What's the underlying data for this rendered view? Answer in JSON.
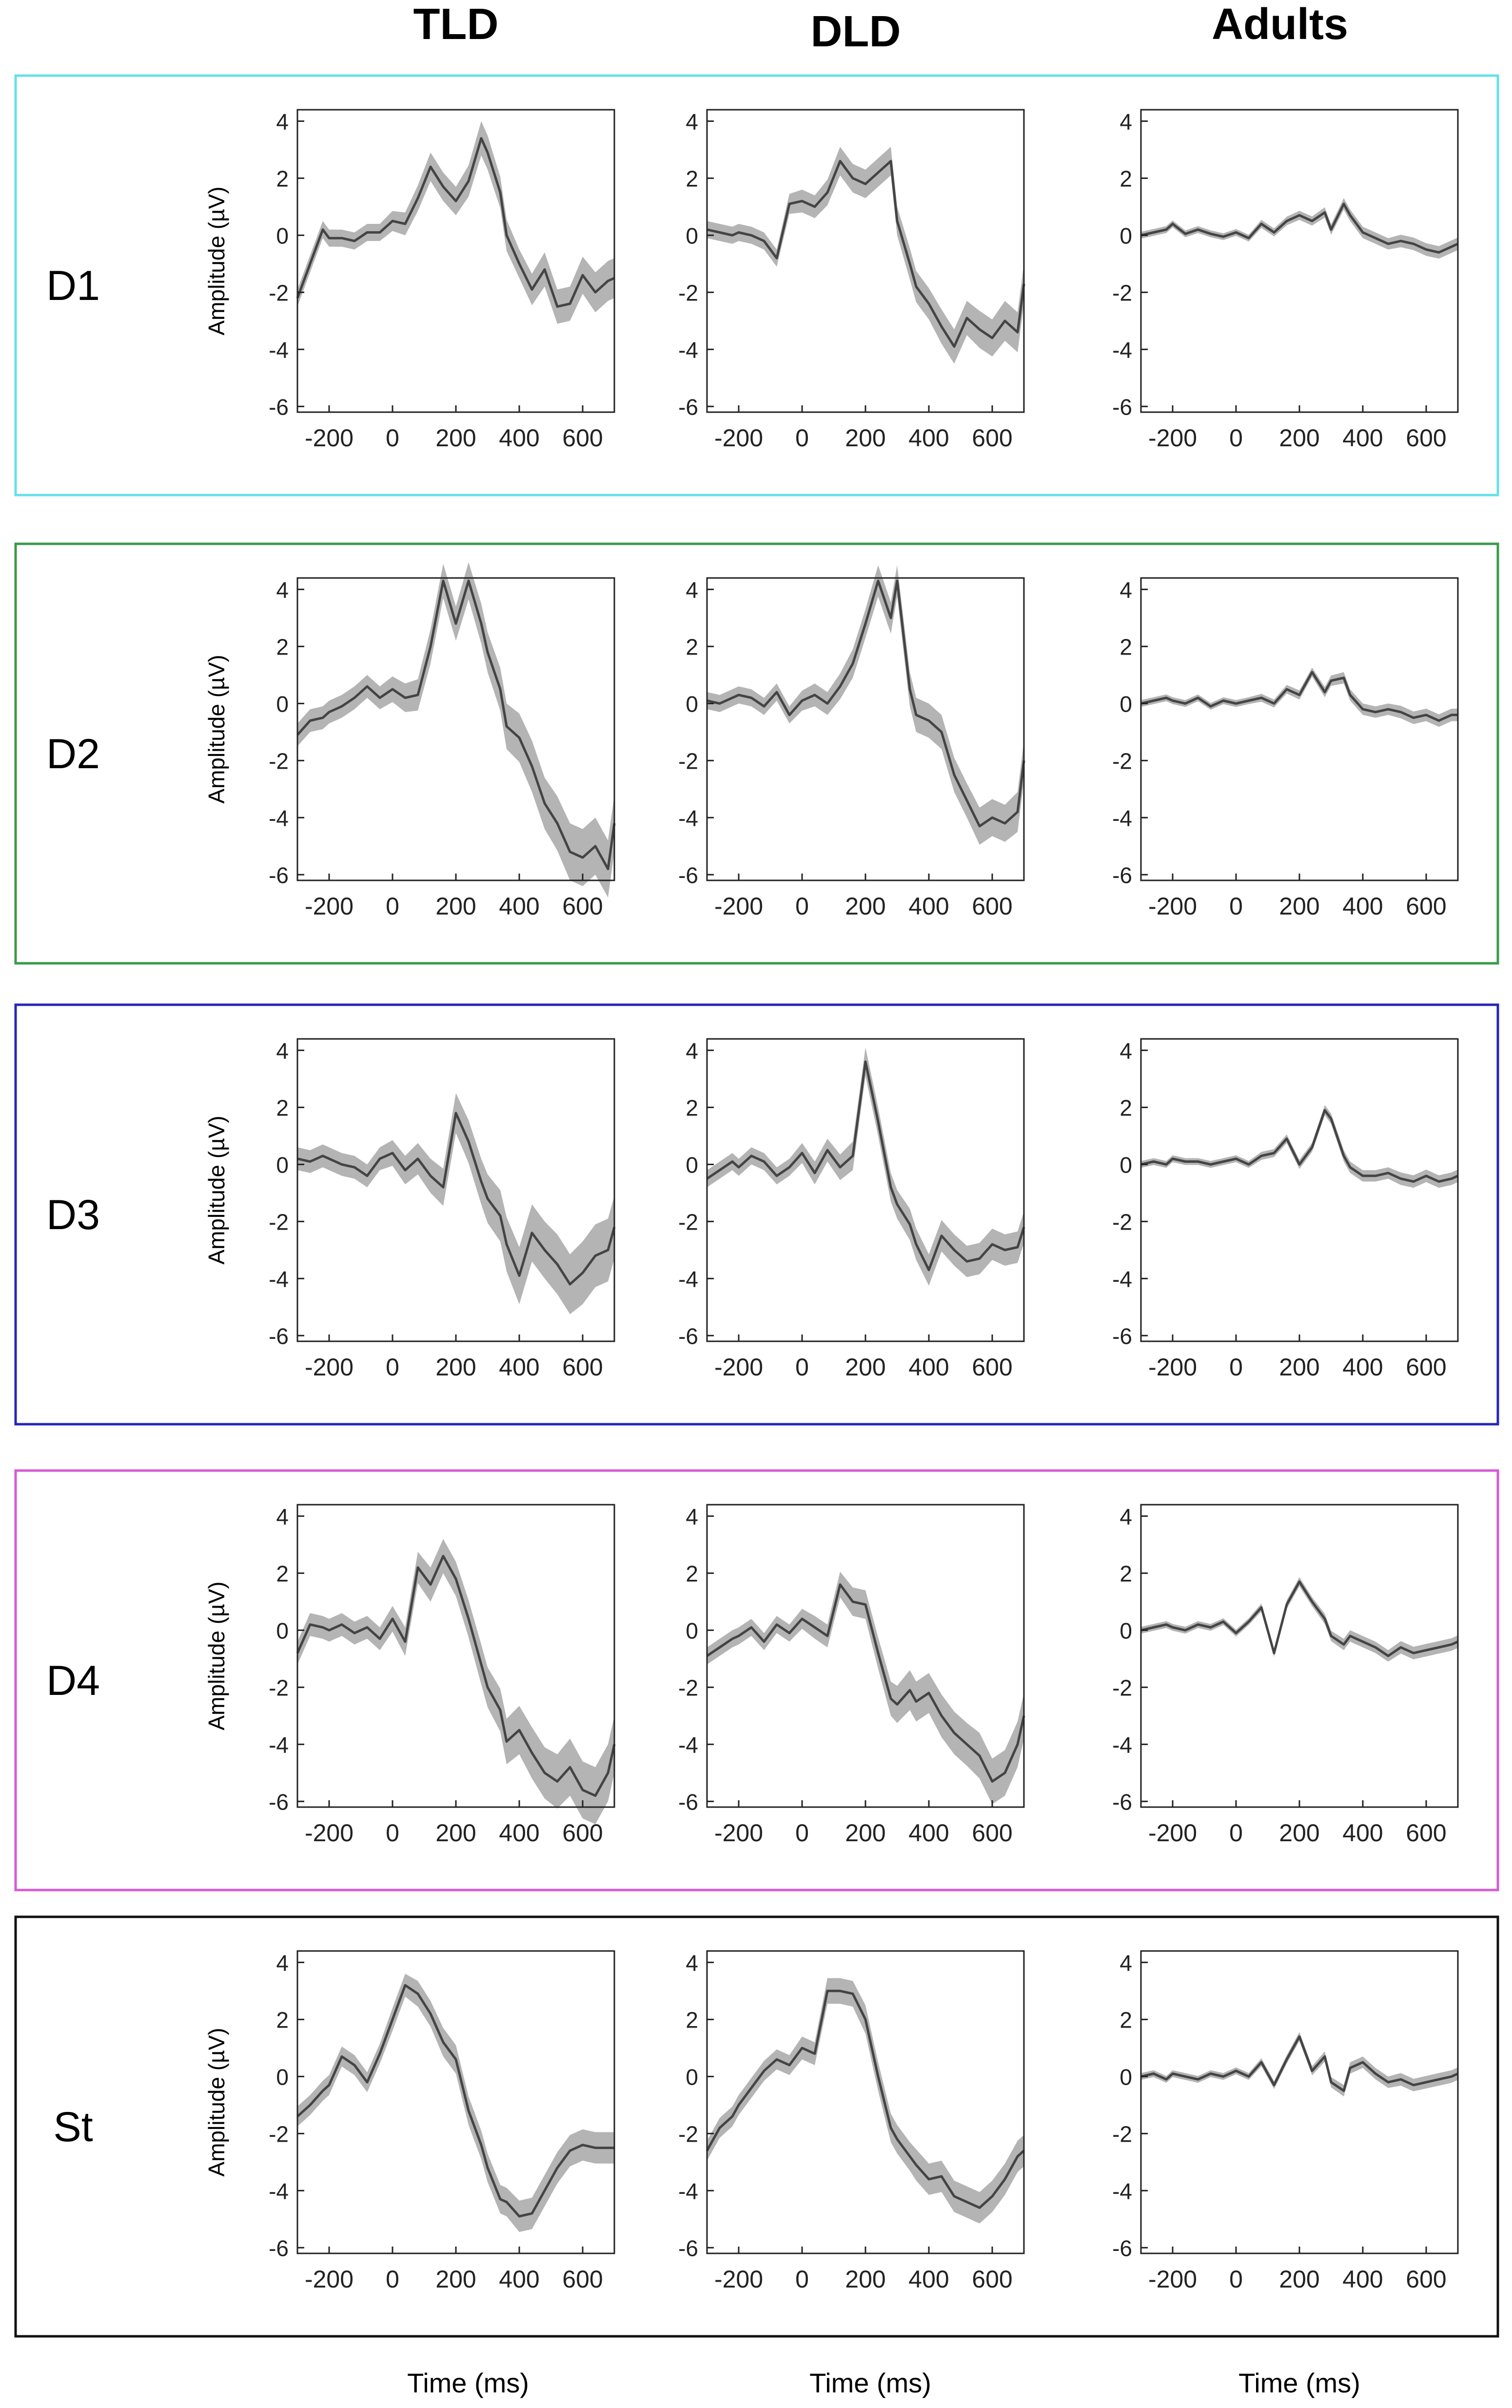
{
  "column_headers": [
    "TLD",
    "DLD",
    "Adults"
  ],
  "row_labels": [
    "D1",
    "D2",
    "D3",
    "D4",
    "St"
  ],
  "row_border_colors": [
    "#66e0ea",
    "#3a9a4a",
    "#2626b8",
    "#d65ad6",
    "#111111"
  ],
  "ylabel": "Amplitude (µV)",
  "xlabel": "Time (ms)",
  "axis": {
    "xlim": [
      -300,
      700
    ],
    "ylim": [
      -6.2,
      4.4
    ],
    "xticks": [
      -200,
      0,
      200,
      400,
      600
    ],
    "yticks": [
      4,
      2,
      0,
      -2,
      -4,
      -6
    ],
    "grid": false
  },
  "colors": {
    "mean_line": "#444444",
    "ci_band": "#b4b4b4",
    "axis": "#222222"
  },
  "chart_data": [
    {
      "type": "line",
      "panel": "D1-TLD",
      "x": [
        -300,
        -260,
        -220,
        -200,
        -160,
        -120,
        -80,
        -40,
        0,
        40,
        80,
        120,
        160,
        200,
        240,
        280,
        300,
        340,
        360,
        400,
        440,
        480,
        520,
        560,
        600,
        640,
        680,
        700
      ],
      "y": [
        -2.2,
        -1.0,
        0.2,
        -0.1,
        -0.1,
        -0.2,
        0.1,
        0.1,
        0.5,
        0.4,
        1.3,
        2.4,
        1.7,
        1.2,
        1.9,
        3.4,
        2.9,
        1.5,
        0,
        -1.0,
        -1.9,
        -1.2,
        -2.5,
        -2.4,
        -1.4,
        -2.0,
        -1.6,
        -1.5
      ],
      "ci": [
        0.3,
        0.3,
        0.3,
        0.3,
        0.3,
        0.3,
        0.3,
        0.3,
        0.35,
        0.4,
        0.45,
        0.5,
        0.5,
        0.5,
        0.55,
        0.6,
        0.6,
        0.55,
        0.55,
        0.5,
        0.55,
        0.6,
        0.6,
        0.6,
        0.65,
        0.7,
        0.7,
        0.7
      ]
    },
    {
      "type": "line",
      "panel": "D1-DLD",
      "x": [
        -300,
        -260,
        -220,
        -200,
        -160,
        -120,
        -80,
        -40,
        0,
        40,
        80,
        120,
        160,
        200,
        240,
        280,
        300,
        340,
        360,
        400,
        440,
        480,
        520,
        560,
        600,
        640,
        680,
        700
      ],
      "y": [
        0.2,
        0.1,
        0.0,
        0.1,
        0,
        -0.2,
        -0.8,
        1.1,
        1.2,
        1.0,
        1.5,
        2.6,
        2.0,
        1.8,
        2.2,
        2.6,
        0.5,
        -1.0,
        -1.8,
        -2.4,
        -3.2,
        -3.9,
        -2.9,
        -3.3,
        -3.6,
        -3.0,
        -3.4,
        -1.7
      ],
      "ci": [
        0.3,
        0.3,
        0.3,
        0.3,
        0.3,
        0.3,
        0.3,
        0.35,
        0.4,
        0.4,
        0.45,
        0.5,
        0.5,
        0.5,
        0.5,
        0.5,
        0.5,
        0.55,
        0.55,
        0.55,
        0.6,
        0.6,
        0.6,
        0.65,
        0.65,
        0.7,
        0.7,
        0.7
      ]
    },
    {
      "type": "line",
      "panel": "D1-Adults",
      "x": [
        -300,
        -260,
        -220,
        -200,
        -160,
        -120,
        -80,
        -40,
        0,
        40,
        80,
        120,
        160,
        200,
        240,
        280,
        300,
        340,
        360,
        400,
        440,
        480,
        520,
        560,
        600,
        640,
        680,
        700
      ],
      "y": [
        0,
        0.1,
        0.2,
        0.4,
        0.05,
        0.2,
        0.05,
        -0.05,
        0.1,
        -0.1,
        0.4,
        0.1,
        0.5,
        0.7,
        0.5,
        0.8,
        0.2,
        1.1,
        0.7,
        0.1,
        -0.1,
        -0.3,
        -0.2,
        -0.3,
        -0.5,
        -0.6,
        -0.4,
        -0.3
      ],
      "ci": [
        0.12,
        0.12,
        0.12,
        0.12,
        0.12,
        0.12,
        0.12,
        0.12,
        0.12,
        0.12,
        0.14,
        0.14,
        0.15,
        0.16,
        0.16,
        0.18,
        0.18,
        0.2,
        0.2,
        0.2,
        0.2,
        0.2,
        0.22,
        0.22,
        0.22,
        0.22,
        0.22,
        0.22
      ]
    },
    {
      "type": "line",
      "panel": "D2-TLD",
      "x": [
        -300,
        -260,
        -220,
        -200,
        -160,
        -120,
        -80,
        -40,
        0,
        40,
        80,
        120,
        160,
        200,
        240,
        280,
        300,
        340,
        360,
        400,
        440,
        480,
        520,
        560,
        600,
        640,
        680,
        700
      ],
      "y": [
        -1.1,
        -0.6,
        -0.5,
        -0.3,
        -0.1,
        0.2,
        0.6,
        0.2,
        0.5,
        0.2,
        0.3,
        2.0,
        4.3,
        2.8,
        4.3,
        2.8,
        1.8,
        0.5,
        -0.8,
        -1.2,
        -2.2,
        -3.5,
        -4.2,
        -5.2,
        -5.4,
        -5.0,
        -5.8,
        -4.2
      ],
      "ci": [
        0.4,
        0.4,
        0.4,
        0.4,
        0.4,
        0.4,
        0.4,
        0.4,
        0.45,
        0.5,
        0.55,
        0.6,
        0.6,
        0.6,
        0.65,
        0.7,
        0.7,
        0.75,
        0.8,
        0.85,
        0.9,
        0.9,
        0.95,
        1.0,
        1.0,
        1.0,
        1.0,
        1.0
      ]
    },
    {
      "type": "line",
      "panel": "D2-DLD",
      "x": [
        -300,
        -260,
        -220,
        -200,
        -160,
        -120,
        -80,
        -40,
        0,
        40,
        80,
        120,
        160,
        200,
        240,
        280,
        300,
        340,
        360,
        400,
        440,
        480,
        520,
        560,
        600,
        640,
        680,
        700
      ],
      "y": [
        0.1,
        0.0,
        0.2,
        0.3,
        0.2,
        -0.1,
        0.4,
        -0.4,
        0.1,
        0.3,
        0.0,
        0.6,
        1.4,
        2.8,
        4.3,
        3.0,
        4.3,
        0.5,
        -0.4,
        -0.6,
        -1.0,
        -2.5,
        -3.4,
        -4.3,
        -4.0,
        -4.2,
        -3.8,
        -2.0
      ],
      "ci": [
        0.3,
        0.3,
        0.3,
        0.3,
        0.3,
        0.3,
        0.3,
        0.3,
        0.35,
        0.4,
        0.4,
        0.45,
        0.5,
        0.5,
        0.55,
        0.55,
        0.55,
        0.6,
        0.6,
        0.6,
        0.6,
        0.6,
        0.6,
        0.65,
        0.65,
        0.65,
        0.7,
        0.7
      ]
    },
    {
      "type": "line",
      "panel": "D2-Adults",
      "x": [
        -300,
        -260,
        -220,
        -200,
        -160,
        -120,
        -80,
        -40,
        0,
        40,
        80,
        120,
        160,
        200,
        240,
        280,
        300,
        340,
        360,
        400,
        440,
        480,
        520,
        560,
        600,
        640,
        680,
        700
      ],
      "y": [
        0,
        0.1,
        0.2,
        0.1,
        0.0,
        0.2,
        -0.1,
        0.1,
        0.0,
        0.1,
        0.2,
        0.0,
        0.5,
        0.3,
        1.1,
        0.4,
        0.8,
        0.9,
        0.3,
        -0.2,
        -0.3,
        -0.2,
        -0.3,
        -0.5,
        -0.4,
        -0.6,
        -0.4,
        -0.4
      ],
      "ci": [
        0.12,
        0.12,
        0.12,
        0.12,
        0.12,
        0.12,
        0.12,
        0.12,
        0.12,
        0.12,
        0.14,
        0.14,
        0.15,
        0.16,
        0.16,
        0.18,
        0.18,
        0.2,
        0.2,
        0.2,
        0.2,
        0.2,
        0.22,
        0.22,
        0.22,
        0.22,
        0.22,
        0.22
      ]
    },
    {
      "type": "line",
      "panel": "D3-TLD",
      "x": [
        -300,
        -260,
        -220,
        -200,
        -160,
        -120,
        -80,
        -40,
        0,
        40,
        80,
        120,
        160,
        200,
        240,
        280,
        300,
        340,
        360,
        400,
        440,
        480,
        520,
        560,
        600,
        640,
        680,
        700
      ],
      "y": [
        0.2,
        0.1,
        0.3,
        0.2,
        0.0,
        -0.1,
        -0.4,
        0.2,
        0.4,
        -0.2,
        0.2,
        -0.4,
        -0.8,
        1.8,
        0.8,
        -0.6,
        -1.2,
        -1.8,
        -2.8,
        -3.9,
        -2.4,
        -3.0,
        -3.5,
        -4.2,
        -3.8,
        -3.2,
        -3.0,
        -2.2
      ],
      "ci": [
        0.4,
        0.4,
        0.4,
        0.4,
        0.4,
        0.4,
        0.4,
        0.4,
        0.45,
        0.5,
        0.55,
        0.6,
        0.65,
        0.7,
        0.75,
        0.8,
        0.85,
        0.9,
        0.95,
        1.0,
        1.0,
        1.0,
        1.05,
        1.05,
        1.1,
        1.1,
        1.1,
        1.1
      ]
    },
    {
      "type": "line",
      "panel": "D3-DLD",
      "x": [
        -300,
        -260,
        -220,
        -200,
        -160,
        -120,
        -80,
        -40,
        0,
        40,
        80,
        120,
        160,
        200,
        240,
        280,
        300,
        340,
        360,
        400,
        440,
        480,
        520,
        560,
        600,
        640,
        680,
        700
      ],
      "y": [
        -0.5,
        -0.2,
        0.1,
        -0.1,
        0.3,
        0.1,
        -0.4,
        -0.1,
        0.4,
        -0.3,
        0.5,
        -0.1,
        0.3,
        3.6,
        1.5,
        -0.8,
        -1.4,
        -2.1,
        -2.8,
        -3.7,
        -2.5,
        -3.0,
        -3.4,
        -3.3,
        -2.8,
        -3.0,
        -2.9,
        -2.2
      ],
      "ci": [
        0.3,
        0.3,
        0.3,
        0.3,
        0.3,
        0.3,
        0.3,
        0.3,
        0.35,
        0.4,
        0.4,
        0.45,
        0.5,
        0.5,
        0.5,
        0.5,
        0.5,
        0.55,
        0.55,
        0.55,
        0.55,
        0.55,
        0.55,
        0.55,
        0.55,
        0.55,
        0.55,
        0.55
      ]
    },
    {
      "type": "line",
      "panel": "D3-Adults",
      "x": [
        -300,
        -260,
        -220,
        -200,
        -160,
        -120,
        -80,
        -40,
        0,
        40,
        80,
        120,
        160,
        200,
        240,
        280,
        300,
        340,
        360,
        400,
        440,
        480,
        520,
        560,
        600,
        640,
        680,
        700
      ],
      "y": [
        0,
        0.1,
        0.0,
        0.2,
        0.1,
        0.1,
        0.0,
        0.1,
        0.2,
        0.0,
        0.3,
        0.4,
        0.9,
        0.0,
        0.6,
        1.9,
        1.6,
        0.3,
        -0.1,
        -0.4,
        -0.4,
        -0.3,
        -0.5,
        -0.6,
        -0.4,
        -0.6,
        -0.5,
        -0.4
      ],
      "ci": [
        0.12,
        0.12,
        0.12,
        0.12,
        0.12,
        0.12,
        0.12,
        0.12,
        0.12,
        0.12,
        0.14,
        0.14,
        0.15,
        0.16,
        0.16,
        0.18,
        0.18,
        0.2,
        0.2,
        0.2,
        0.2,
        0.2,
        0.22,
        0.22,
        0.22,
        0.22,
        0.22,
        0.22
      ]
    },
    {
      "type": "line",
      "panel": "D4-TLD",
      "x": [
        -300,
        -260,
        -220,
        -200,
        -160,
        -120,
        -80,
        -40,
        0,
        40,
        80,
        120,
        160,
        200,
        240,
        280,
        300,
        340,
        360,
        400,
        440,
        480,
        520,
        560,
        600,
        640,
        680,
        700
      ],
      "y": [
        -0.8,
        0.2,
        0.1,
        0.0,
        0.2,
        -0.1,
        0.1,
        -0.3,
        0.4,
        -0.4,
        2.2,
        1.6,
        2.6,
        1.8,
        0.4,
        -1.2,
        -2.0,
        -2.8,
        -3.9,
        -3.5,
        -4.3,
        -5.0,
        -5.3,
        -4.8,
        -5.6,
        -5.8,
        -5.0,
        -4.0
      ],
      "ci": [
        0.4,
        0.4,
        0.4,
        0.4,
        0.4,
        0.4,
        0.4,
        0.4,
        0.45,
        0.5,
        0.55,
        0.6,
        0.6,
        0.6,
        0.65,
        0.7,
        0.7,
        0.75,
        0.8,
        0.85,
        0.9,
        0.9,
        0.95,
        1.0,
        1.0,
        1.0,
        1.0,
        1.0
      ]
    },
    {
      "type": "line",
      "panel": "D4-DLD",
      "x": [
        -300,
        -260,
        -220,
        -200,
        -160,
        -120,
        -80,
        -40,
        0,
        40,
        80,
        120,
        160,
        200,
        240,
        280,
        300,
        340,
        360,
        400,
        440,
        480,
        520,
        560,
        600,
        640,
        680,
        700
      ],
      "y": [
        -0.9,
        -0.6,
        -0.3,
        -0.2,
        0.1,
        -0.4,
        0.2,
        -0.1,
        0.4,
        0.1,
        -0.2,
        1.6,
        1.0,
        0.9,
        -0.8,
        -2.4,
        -2.6,
        -2.1,
        -2.5,
        -2.2,
        -3.0,
        -3.6,
        -4.0,
        -4.4,
        -5.3,
        -5.0,
        -4.0,
        -3.0
      ],
      "ci": [
        0.3,
        0.3,
        0.3,
        0.3,
        0.3,
        0.3,
        0.3,
        0.3,
        0.35,
        0.4,
        0.4,
        0.45,
        0.5,
        0.5,
        0.55,
        0.6,
        0.65,
        0.7,
        0.7,
        0.7,
        0.75,
        0.75,
        0.75,
        0.8,
        0.8,
        0.8,
        0.8,
        0.8
      ]
    },
    {
      "type": "line",
      "panel": "D4-Adults",
      "x": [
        -300,
        -260,
        -220,
        -200,
        -160,
        -120,
        -80,
        -40,
        0,
        40,
        80,
        120,
        160,
        200,
        240,
        280,
        300,
        340,
        360,
        400,
        440,
        480,
        520,
        560,
        600,
        640,
        680,
        700
      ],
      "y": [
        0,
        0.1,
        0.2,
        0.1,
        0.0,
        0.2,
        0.1,
        0.3,
        -0.1,
        0.3,
        0.8,
        -0.8,
        0.9,
        1.7,
        1.0,
        0.4,
        -0.2,
        -0.5,
        -0.2,
        -0.4,
        -0.6,
        -0.9,
        -0.6,
        -0.8,
        -0.7,
        -0.6,
        -0.5,
        -0.4
      ],
      "ci": [
        0.12,
        0.12,
        0.12,
        0.12,
        0.12,
        0.12,
        0.12,
        0.12,
        0.12,
        0.12,
        0.14,
        0.14,
        0.15,
        0.16,
        0.16,
        0.18,
        0.18,
        0.2,
        0.2,
        0.2,
        0.2,
        0.2,
        0.22,
        0.22,
        0.22,
        0.22,
        0.22,
        0.22
      ]
    },
    {
      "type": "line",
      "panel": "St-TLD",
      "x": [
        -300,
        -260,
        -220,
        -200,
        -160,
        -120,
        -80,
        -40,
        0,
        40,
        80,
        120,
        160,
        200,
        240,
        280,
        300,
        340,
        360,
        400,
        440,
        480,
        520,
        560,
        600,
        640,
        680,
        700
      ],
      "y": [
        -1.4,
        -1.0,
        -0.5,
        -0.3,
        0.7,
        0.4,
        -0.2,
        0.8,
        2.0,
        3.2,
        2.9,
        2.2,
        1.2,
        0.6,
        -1.2,
        -2.4,
        -3.2,
        -4.3,
        -4.4,
        -4.9,
        -4.8,
        -4.0,
        -3.2,
        -2.6,
        -2.4,
        -2.5,
        -2.5,
        -2.5
      ],
      "ci": [
        0.35,
        0.35,
        0.35,
        0.35,
        0.35,
        0.35,
        0.35,
        0.35,
        0.4,
        0.4,
        0.45,
        0.45,
        0.5,
        0.5,
        0.5,
        0.5,
        0.5,
        0.5,
        0.5,
        0.55,
        0.55,
        0.55,
        0.55,
        0.55,
        0.55,
        0.55,
        0.55,
        0.55
      ]
    },
    {
      "type": "line",
      "panel": "St-DLD",
      "x": [
        -300,
        -260,
        -220,
        -200,
        -160,
        -120,
        -80,
        -40,
        0,
        40,
        80,
        120,
        160,
        200,
        240,
        280,
        300,
        340,
        360,
        400,
        440,
        480,
        520,
        560,
        600,
        640,
        680,
        700
      ],
      "y": [
        -2.6,
        -1.8,
        -1.4,
        -1.0,
        -0.4,
        0.2,
        0.6,
        0.4,
        1.0,
        0.8,
        3.0,
        3.0,
        2.9,
        2.0,
        0.0,
        -1.8,
        -2.2,
        -2.8,
        -3.1,
        -3.6,
        -3.5,
        -4.2,
        -4.4,
        -4.6,
        -4.2,
        -3.6,
        -2.8,
        -2.6
      ],
      "ci": [
        0.35,
        0.35,
        0.35,
        0.35,
        0.35,
        0.35,
        0.35,
        0.35,
        0.4,
        0.4,
        0.45,
        0.45,
        0.45,
        0.5,
        0.5,
        0.5,
        0.5,
        0.5,
        0.55,
        0.55,
        0.55,
        0.55,
        0.55,
        0.55,
        0.55,
        0.55,
        0.55,
        0.55
      ]
    },
    {
      "type": "line",
      "panel": "St-Adults",
      "x": [
        -300,
        -260,
        -220,
        -200,
        -160,
        -120,
        -80,
        -40,
        0,
        40,
        80,
        120,
        160,
        200,
        240,
        280,
        300,
        340,
        360,
        400,
        440,
        480,
        520,
        560,
        600,
        640,
        680,
        700
      ],
      "y": [
        0,
        0.1,
        -0.1,
        0.1,
        0.0,
        -0.1,
        0.1,
        0.0,
        0.2,
        0.0,
        0.5,
        -0.3,
        0.6,
        1.4,
        0.2,
        0.7,
        -0.2,
        -0.5,
        0.3,
        0.5,
        0.1,
        -0.2,
        -0.1,
        -0.3,
        -0.2,
        -0.1,
        0.0,
        0.1
      ],
      "ci": [
        0.12,
        0.12,
        0.12,
        0.12,
        0.12,
        0.12,
        0.12,
        0.12,
        0.12,
        0.12,
        0.14,
        0.14,
        0.15,
        0.16,
        0.16,
        0.18,
        0.18,
        0.2,
        0.2,
        0.2,
        0.2,
        0.2,
        0.22,
        0.22,
        0.22,
        0.22,
        0.22,
        0.22
      ]
    }
  ]
}
